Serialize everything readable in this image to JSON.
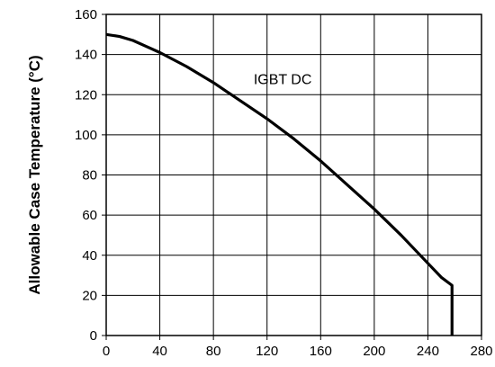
{
  "chart_data": {
    "type": "line",
    "ylabel": "Allowable Case Temperature (°C)",
    "xlabel": "",
    "xlim": [
      0,
      280
    ],
    "ylim": [
      0,
      160
    ],
    "x_ticks": [
      0,
      40,
      80,
      120,
      160,
      200,
      240,
      280
    ],
    "y_ticks": [
      0,
      20,
      40,
      60,
      80,
      100,
      120,
      140,
      160
    ],
    "grid": true,
    "colors": {
      "line": "#000000",
      "grid": "#000000",
      "axis": "#000000"
    },
    "series": [
      {
        "x": [
          0,
          10,
          20,
          30,
          40,
          60,
          80,
          100,
          120,
          140,
          160,
          180,
          200,
          220,
          240,
          250,
          258,
          258
        ],
        "y": [
          150,
          149,
          147,
          144,
          141,
          134,
          126,
          117,
          108,
          98,
          87,
          75,
          63,
          50,
          36,
          29,
          25,
          0
        ]
      }
    ],
    "annotations": [
      {
        "text": "IGBT DC",
        "x": 110,
        "y": 128
      }
    ]
  }
}
